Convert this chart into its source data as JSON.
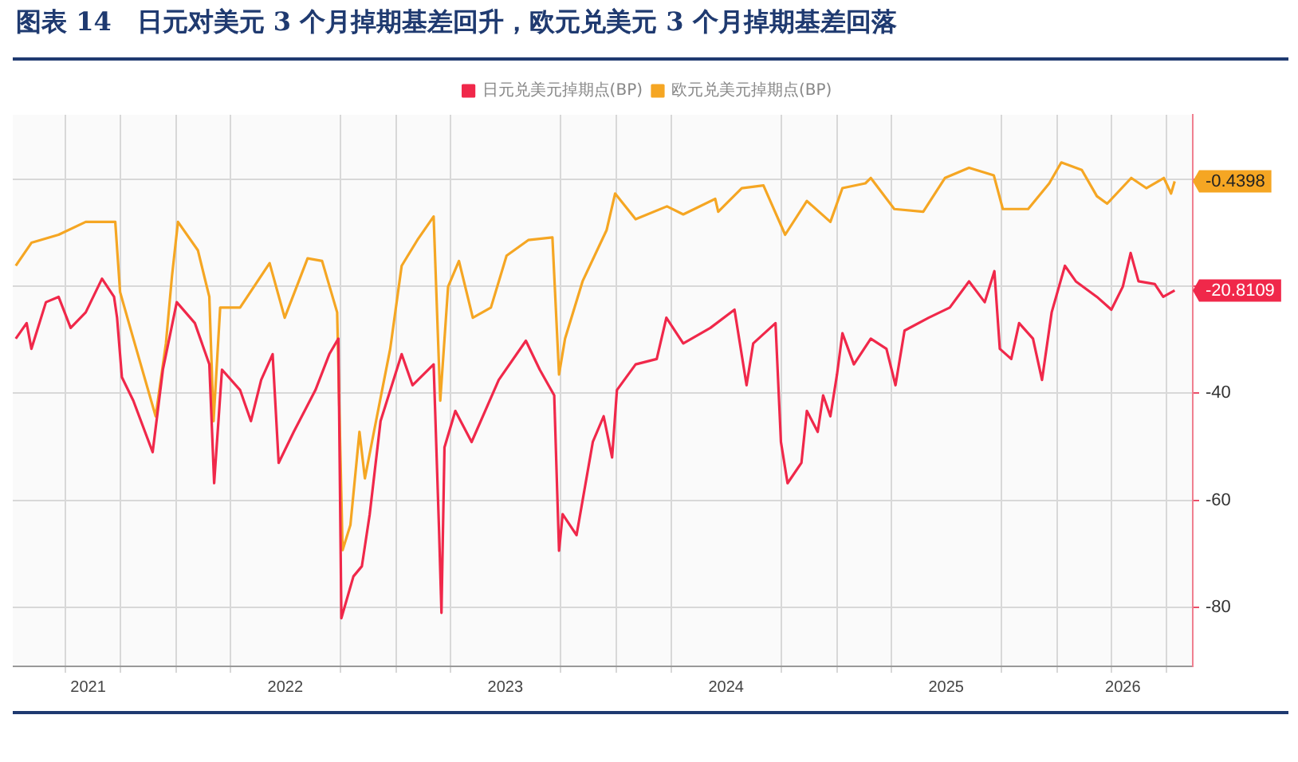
{
  "chart_data": {
    "type": "line",
    "title": "图表 14　日元对美元 3 个月掉期基差回升，欧元兑美元 3 个月掉期基差回落",
    "series": [
      {
        "name": "日元兑美元掉期点(BP)",
        "color": "#f0284a",
        "x": [
          "2021-04-10",
          "2021-04-28",
          "2021-05-06",
          "2021-05-30",
          "2021-06-20",
          "2021-07-10",
          "2021-08-04",
          "2021-08-31",
          "2021-09-20",
          "2021-09-25",
          "2021-10-03",
          "2021-10-22",
          "2021-11-23",
          "2021-12-10",
          "2022-01-02",
          "2022-02-01",
          "2022-02-25",
          "2022-03-05",
          "2022-03-18",
          "2022-04-17",
          "2022-05-05",
          "2022-05-22",
          "2022-06-10",
          "2022-06-20",
          "2022-07-15",
          "2022-08-20",
          "2022-09-12",
          "2022-09-27",
          "2022-10-02",
          "2022-10-22",
          "2022-11-05",
          "2022-11-18",
          "2022-12-06",
          "2023-01-10",
          "2023-01-28",
          "2023-03-04",
          "2023-03-13",
          "2023-03-17",
          "2023-03-22",
          "2023-04-09",
          "2023-05-06",
          "2023-06-20",
          "2023-08-04",
          "2023-08-27",
          "2023-09-20",
          "2023-09-28",
          "2023-10-04",
          "2023-10-27",
          "2023-11-23",
          "2023-12-11",
          "2023-12-25",
          "2024-01-02",
          "2024-02-02",
          "2024-03-08",
          "2024-03-24",
          "2024-04-21",
          "2024-06-05",
          "2024-07-15",
          "2024-08-04",
          "2024-08-15",
          "2024-09-21",
          "2024-09-30",
          "2024-10-11",
          "2024-11-03",
          "2024-11-12",
          "2024-11-30",
          "2024-12-09",
          "2024-12-21",
          "2025-01-01",
          "2025-01-10",
          "2025-01-29",
          "2025-02-26",
          "2025-03-24",
          "2025-04-08",
          "2025-04-23",
          "2025-06-02",
          "2025-07-07",
          "2025-08-08",
          "2025-09-03",
          "2025-09-19",
          "2025-09-28",
          "2025-10-17",
          "2025-10-30",
          "2025-11-22",
          "2025-12-07",
          "2025-12-23",
          "2026-01-14",
          "2026-02-01",
          "2026-03-08",
          "2026-04-01",
          "2026-04-20",
          "2026-05-03",
          "2026-05-16",
          "2026-06-12",
          "2026-06-26",
          "2026-07-15"
        ],
        "values": [
          -29.8,
          -26.9,
          -31.7,
          -23,
          -22,
          -27.8,
          -24.9,
          -18.6,
          -22,
          -25.9,
          -37,
          -41.4,
          -51,
          -35.6,
          -23,
          -26.9,
          -34.6,
          -56.8,
          -35.6,
          -39.4,
          -45.2,
          -37.5,
          -32.7,
          -53,
          -47.2,
          -39.4,
          -32.7,
          -29.8,
          -82,
          -74.2,
          -72.3,
          -62.6,
          -45.2,
          -32.7,
          -38.5,
          -34.6,
          -65.5,
          -81,
          -50.1,
          -43.3,
          -49.1,
          -37.5,
          -30.2,
          -35.6,
          -40.4,
          -69.4,
          -62.6,
          -66.5,
          -49.1,
          -44.3,
          -52,
          -39.4,
          -34.6,
          -33.6,
          -25.9,
          -30.7,
          -27.8,
          -24.4,
          -38.5,
          -30.7,
          -26.9,
          -49.1,
          -56.8,
          -53,
          -43.3,
          -47.2,
          -40.4,
          -44.3,
          -36.5,
          -28.8,
          -34.6,
          -29.8,
          -31.7,
          -38.5,
          -28.3,
          -25.9,
          -24,
          -19.1,
          -23,
          -17.2,
          -31.7,
          -33.6,
          -26.9,
          -29.8,
          -37.5,
          -24.9,
          -16.2,
          -19.1,
          -22,
          -24.4,
          -20.1,
          -13.8,
          -19.1,
          -19.6,
          -22,
          -20.8109
        ]
      },
      {
        "name": "欧元兑美元掉期点(BP)",
        "color": "#f5a623",
        "x": [
          "2021-04-10",
          "2021-05-06",
          "2021-06-20",
          "2021-08-04",
          "2021-09-22",
          "2021-09-30",
          "2021-10-22",
          "2021-11-28",
          "2021-12-15",
          "2021-12-25",
          "2022-01-04",
          "2022-02-06",
          "2022-02-25",
          "2022-03-04",
          "2022-03-15",
          "2022-04-17",
          "2022-06-05",
          "2022-06-30",
          "2022-08-07",
          "2022-08-31",
          "2022-09-25",
          "2022-10-04",
          "2022-10-17",
          "2022-11-01",
          "2022-11-10",
          "2022-11-25",
          "2022-12-22",
          "2023-01-10",
          "2023-02-05",
          "2023-03-04",
          "2023-03-15",
          "2023-03-28",
          "2023-04-15",
          "2023-05-08",
          "2023-06-07",
          "2023-07-03",
          "2023-08-08",
          "2023-09-17",
          "2023-09-28",
          "2023-10-08",
          "2023-11-06",
          "2023-12-16",
          "2023-12-30",
          "2024-02-02",
          "2024-03-25",
          "2024-04-21",
          "2024-06-13",
          "2024-06-18",
          "2024-07-27",
          "2024-09-01",
          "2024-10-07",
          "2024-11-12",
          "2024-12-21",
          "2025-01-10",
          "2025-02-17",
          "2025-02-26",
          "2025-04-06",
          "2025-05-24",
          "2025-06-29",
          "2025-08-08",
          "2025-09-18",
          "2025-10-03",
          "2025-11-14",
          "2025-12-19",
          "2026-01-08",
          "2026-02-11",
          "2026-03-08",
          "2026-03-25",
          "2026-05-04",
          "2026-05-29",
          "2026-06-27",
          "2026-07-09",
          "2026-07-15"
        ],
        "values": [
          -16.2,
          -11.9,
          -10.4,
          -8,
          -8,
          -21.1,
          -29.8,
          -44.3,
          -30.7,
          -18.2,
          -8,
          -13.3,
          -22,
          -45.2,
          -24,
          -24,
          -15.7,
          -25.9,
          -14.8,
          -15.3,
          -24.9,
          -69.3,
          -64.6,
          -47.2,
          -55.9,
          -47.2,
          -31.7,
          -16.2,
          -11.4,
          -7,
          -41.4,
          -20.1,
          -15.3,
          -25.9,
          -24,
          -14.3,
          -11.4,
          -10.9,
          -36.5,
          -29.8,
          -19.1,
          -9.5,
          -2.7,
          -7.5,
          -5.1,
          -6.6,
          -3.7,
          -6.1,
          -1.7,
          -1.2,
          -10.4,
          -4.1,
          -8,
          -1.7,
          -0.8,
          0.2,
          -5.6,
          -6.1,
          0.2,
          2.1,
          0.7,
          -5.6,
          -5.6,
          -0.8,
          3.1,
          1.7,
          -3.2,
          -4.6,
          0.2,
          -1.7,
          0.2,
          -2.7,
          -0.4398
        ]
      }
    ],
    "annotations": [
      {
        "text": "-20.8109",
        "x": "2026-07-15",
        "y": -20.8109
      },
      {
        "text": "-0.4398",
        "x": "2026-07-15",
        "y": -0.4398
      }
    ],
    "xlim": [
      "2021-04-05",
      "2026-08-14"
    ],
    "xticks": [
      {
        "value": "2021-07-01",
        "label": null
      },
      {
        "value": "2021-08-08",
        "label": "2021"
      },
      {
        "value": "2021-10-01",
        "label": null
      },
      {
        "value": "2022-01-01",
        "label": null
      },
      {
        "value": "2022-04-01",
        "label": null
      },
      {
        "value": "2022-07-01",
        "label": "2022"
      },
      {
        "value": "2022-10-01",
        "label": null
      },
      {
        "value": "2023-01-01",
        "label": null
      },
      {
        "value": "2023-04-01",
        "label": null
      },
      {
        "value": "2023-07-01",
        "label": "2023"
      },
      {
        "value": "2023-10-01",
        "label": null
      },
      {
        "value": "2024-01-01",
        "label": null
      },
      {
        "value": "2024-04-01",
        "label": null
      },
      {
        "value": "2024-07-01",
        "label": "2024"
      },
      {
        "value": "2024-10-01",
        "label": null
      },
      {
        "value": "2025-01-01",
        "label": null
      },
      {
        "value": "2025-04-01",
        "label": null
      },
      {
        "value": "2025-07-01",
        "label": "2025"
      },
      {
        "value": "2025-10-01",
        "label": null
      },
      {
        "value": "2026-01-01",
        "label": null
      },
      {
        "value": "2026-04-01",
        "label": null
      },
      {
        "value": "2026-04-20",
        "label": "2026"
      },
      {
        "value": "2026-07-01",
        "label": null
      }
    ],
    "ylim": [
      -91,
      12
    ],
    "yticks": [
      {
        "value": -80,
        "label": "-80"
      },
      {
        "value": -60,
        "label": "-60"
      },
      {
        "value": -40,
        "label": "-40"
      },
      {
        "value": -20,
        "label": null
      },
      {
        "value": 0,
        "label": null
      }
    ],
    "grid": true,
    "legend": "top",
    "marker": "none",
    "line_style": "solid"
  }
}
